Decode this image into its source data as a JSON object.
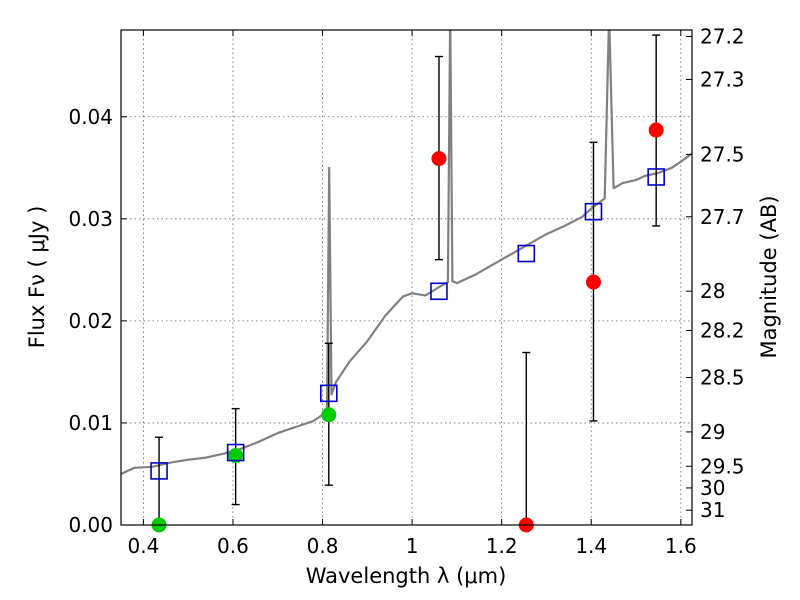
{
  "chart_data": {
    "type": "scatter",
    "xlabel": "Wavelength  λ (μm)",
    "ylabel": "Flux  Fν  ( μJy )",
    "y2label": "Magnitude (AB)",
    "xlim": [
      0.35,
      1.625
    ],
    "ylim": [
      0.0,
      0.0485
    ],
    "grid": true,
    "x_ticks": [
      0.4,
      0.6,
      0.8,
      1.0,
      1.2,
      1.4,
      1.6
    ],
    "x_tick_labels": [
      "0.4",
      "0.6",
      "0.8",
      "1",
      "1.2",
      "1.4",
      "1.6"
    ],
    "y_ticks": [
      0.0,
      0.01,
      0.02,
      0.03,
      0.04
    ],
    "y_tick_labels": [
      "0.00",
      "0.01",
      "0.02",
      "0.03",
      "0.04"
    ],
    "y2_tick_labels": [
      "27.2",
      "27.3",
      "27.5",
      "27.7",
      "28",
      "28.2",
      "28.5",
      "29",
      "29.5",
      "30",
      "31"
    ],
    "colors": {
      "model": "#808080",
      "model_flux": "#0000cc",
      "detected": "#ff0000",
      "optical": "#00cc00",
      "errorbar": "#000000"
    },
    "series": [
      {
        "marker": "open-square",
        "x": [
          0.435,
          0.606,
          0.814,
          1.06,
          1.255,
          1.405,
          1.545
        ],
        "y": [
          0.0053,
          0.0071,
          0.0129,
          0.0229,
          0.0266,
          0.0307,
          0.0341
        ]
      },
      {
        "marker": "circle-red",
        "x": [
          1.06,
          1.255,
          1.405,
          1.545
        ],
        "y": [
          0.0359,
          0.0,
          0.0238,
          0.0387
        ],
        "yerr_low": [
          0.026,
          0.0,
          0.0102,
          0.0293
        ],
        "yerr_high": [
          0.0459,
          0.0169,
          0.0375,
          0.048
        ]
      },
      {
        "marker": "circle-green",
        "x": [
          0.435,
          0.606,
          0.814
        ],
        "y": [
          0.0,
          0.0068,
          0.0108
        ],
        "yerr_low": [
          0.0,
          0.002,
          0.0039
        ],
        "yerr_high": [
          0.0086,
          0.0114,
          0.0178
        ]
      },
      {
        "marker": "line",
        "x": [
          0.35,
          0.38,
          0.42,
          0.46,
          0.5,
          0.54,
          0.58,
          0.62,
          0.66,
          0.7,
          0.74,
          0.78,
          0.8,
          0.81,
          0.815,
          0.82,
          0.83,
          0.86,
          0.9,
          0.94,
          0.98,
          1.0,
          1.03,
          1.06,
          1.08,
          1.085,
          1.09,
          1.1,
          1.14,
          1.18,
          1.22,
          1.26,
          1.3,
          1.34,
          1.38,
          1.4,
          1.43,
          1.44,
          1.45,
          1.47,
          1.5,
          1.52,
          1.55,
          1.58,
          1.6,
          1.625
        ],
        "y": [
          0.005,
          0.0056,
          0.0057,
          0.0061,
          0.0064,
          0.0066,
          0.007,
          0.0075,
          0.0082,
          0.009,
          0.0096,
          0.0102,
          0.0108,
          0.0112,
          0.035,
          0.0128,
          0.014,
          0.016,
          0.018,
          0.0205,
          0.0224,
          0.0227,
          0.0225,
          0.0233,
          0.0238,
          0.05,
          0.0239,
          0.0237,
          0.0245,
          0.0255,
          0.0265,
          0.0275,
          0.0285,
          0.0293,
          0.0302,
          0.031,
          0.032,
          0.05,
          0.033,
          0.0335,
          0.0338,
          0.0342,
          0.0345,
          0.035,
          0.0356,
          0.0364
        ]
      }
    ]
  }
}
